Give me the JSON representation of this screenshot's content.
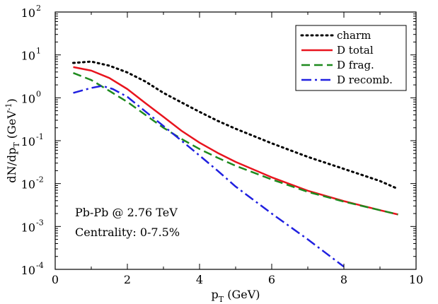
{
  "chart_data": {
    "type": "line",
    "xlabel": "pT (GeV)",
    "ylabel": "dN/dpT (GeV-1)",
    "xlim": [
      0,
      10
    ],
    "ylim": [
      0.0001,
      100
    ],
    "yscale": "log",
    "grid": false,
    "legend_position": "top-right",
    "x_ticks": [
      "0",
      "2",
      "4",
      "6",
      "8",
      "10"
    ],
    "y_ticks": [
      {
        "base": "10",
        "exp": "-4",
        "value": 0.0001
      },
      {
        "base": "10",
        "exp": "-3",
        "value": 0.001
      },
      {
        "base": "10",
        "exp": "-2",
        "value": 0.01
      },
      {
        "base": "10",
        "exp": "-1",
        "value": 0.1
      },
      {
        "base": "10",
        "exp": "0",
        "value": 1
      },
      {
        "base": "10",
        "exp": "1",
        "value": 10
      },
      {
        "base": "10",
        "exp": "2",
        "value": 100
      }
    ],
    "annotations": [
      "Pb-Pb @ 2.76 TeV",
      "Centrality: 0-7.5%"
    ],
    "series": [
      {
        "name": "charm",
        "color": "#000000",
        "style": "dotted",
        "x": [
          0.5,
          1.0,
          1.5,
          2.0,
          2.5,
          3.0,
          3.5,
          4.0,
          4.5,
          5.0,
          6.0,
          7.0,
          8.0,
          9.0,
          9.5
        ],
        "y": [
          6.5,
          7.0,
          5.6,
          3.9,
          2.4,
          1.3,
          0.78,
          0.47,
          0.29,
          0.19,
          0.087,
          0.042,
          0.022,
          0.0115,
          0.0075
        ]
      },
      {
        "name": "D total",
        "color": "#e8141e",
        "style": "solid",
        "x": [
          0.5,
          1.0,
          1.5,
          2.0,
          2.5,
          3.0,
          3.5,
          4.0,
          4.5,
          5.0,
          6.0,
          7.0,
          8.0,
          9.0,
          9.5
        ],
        "y": [
          5.2,
          4.3,
          2.9,
          1.6,
          0.75,
          0.36,
          0.17,
          0.09,
          0.052,
          0.032,
          0.014,
          0.0068,
          0.0039,
          0.0024,
          0.0019
        ]
      },
      {
        "name": "D frag.",
        "color": "#1e8a1e",
        "style": "dashed",
        "x": [
          0.5,
          1.0,
          1.5,
          2.0,
          2.5,
          3.0,
          3.5,
          4.0,
          4.5,
          5.0,
          6.0,
          7.0,
          8.0,
          9.0,
          9.5
        ],
        "y": [
          3.8,
          2.6,
          1.45,
          0.8,
          0.4,
          0.2,
          0.11,
          0.064,
          0.04,
          0.026,
          0.0125,
          0.0064,
          0.0038,
          0.0024,
          0.0019
        ]
      },
      {
        "name": "D recomb.",
        "color": "#2020e0",
        "style": "dashdot",
        "x": [
          0.5,
          1.0,
          1.3,
          1.6,
          2.0,
          2.5,
          3.0,
          3.5,
          4.0,
          4.5,
          5.0,
          6.0,
          7.0,
          8.0
        ],
        "y": [
          1.3,
          1.7,
          1.9,
          1.6,
          1.05,
          0.48,
          0.22,
          0.1,
          0.045,
          0.02,
          0.0085,
          0.002,
          0.0005,
          0.000115
        ]
      }
    ]
  }
}
